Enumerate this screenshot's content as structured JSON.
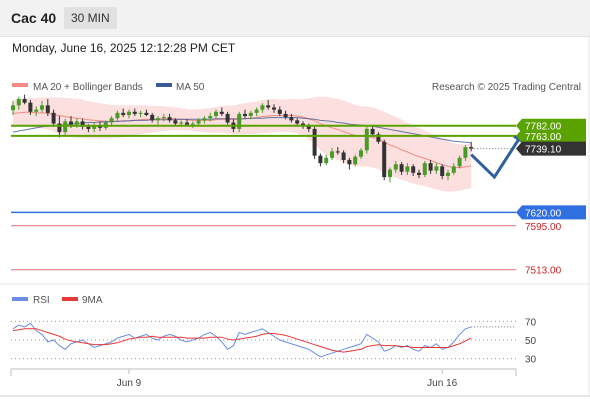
{
  "header": {
    "instrument": "Cac 40",
    "timeframe": "30 MIN"
  },
  "datetime": "Monday, June 16, 2025 12:12:28 PM CET",
  "legend": {
    "ma20": {
      "label": "MA 20 + Bollinger Bands",
      "color": "#f28b82"
    },
    "ma50": {
      "label": "MA 50",
      "color": "#3d5a98"
    },
    "copyright": "Research © 2025 Trading Central"
  },
  "rsi_legend": {
    "rsi": {
      "label": "RSI",
      "color": "#6a8fe0"
    },
    "ma9": {
      "label": "9MA",
      "color": "#e53935"
    }
  },
  "colors": {
    "green_level": "#5aa200",
    "blue_level": "#2f6fe0",
    "red_level": "#e07070",
    "bb_fill": "#fbd9d9",
    "candle_up": "#4a9a2a",
    "candle_down": "#333333",
    "last_price_bg": "#333333",
    "arrow": "#2f5f9e"
  },
  "chart_data": [
    {
      "type": "candlestick",
      "ylim": [
        7490,
        7830
      ],
      "x_ticks": [
        {
          "index": 20,
          "label": "Jun 9"
        },
        {
          "index": 74,
          "label": "Jun 16"
        }
      ],
      "levels": [
        {
          "value": 7782.0,
          "label": "7782.00",
          "style": "green-box"
        },
        {
          "value": 7763.0,
          "label": "7763.00",
          "style": "green-box"
        },
        {
          "value": 7620.0,
          "label": "7620.00",
          "style": "blue-box"
        },
        {
          "value": 7595.0,
          "label": "7595.00",
          "style": "red-text"
        },
        {
          "value": 7513.0,
          "label": "7513.00",
          "style": "red-text"
        }
      ],
      "last_price": {
        "value": 7739.1,
        "label": "7739.10"
      },
      "candles": [
        [
          7811,
          7828,
          7802,
          7820
        ],
        [
          7820,
          7836,
          7812,
          7832
        ],
        [
          7832,
          7840,
          7822,
          7825
        ],
        [
          7825,
          7830,
          7802,
          7808
        ],
        [
          7808,
          7818,
          7800,
          7812
        ],
        [
          7812,
          7828,
          7806,
          7820
        ],
        [
          7820,
          7832,
          7800,
          7806
        ],
        [
          7806,
          7812,
          7780,
          7786
        ],
        [
          7786,
          7800,
          7760,
          7770
        ],
        [
          7770,
          7795,
          7765,
          7790
        ],
        [
          7790,
          7800,
          7778,
          7784
        ],
        [
          7784,
          7795,
          7778,
          7790
        ],
        [
          7790,
          7795,
          7775,
          7780
        ],
        [
          7780,
          7785,
          7770,
          7776
        ],
        [
          7776,
          7788,
          7770,
          7782
        ],
        [
          7782,
          7790,
          7772,
          7778
        ],
        [
          7778,
          7792,
          7774,
          7788
        ],
        [
          7788,
          7800,
          7782,
          7796
        ],
        [
          7796,
          7810,
          7790,
          7806
        ],
        [
          7806,
          7814,
          7798,
          7802
        ],
        [
          7802,
          7812,
          7796,
          7808
        ],
        [
          7808,
          7814,
          7800,
          7804
        ],
        [
          7804,
          7810,
          7798,
          7806
        ],
        [
          7806,
          7812,
          7800,
          7802
        ],
        [
          7802,
          7806,
          7788,
          7792
        ],
        [
          7792,
          7800,
          7784,
          7796
        ],
        [
          7796,
          7804,
          7790,
          7798
        ],
        [
          7798,
          7804,
          7788,
          7792
        ],
        [
          7792,
          7796,
          7782,
          7786
        ],
        [
          7786,
          7792,
          7780,
          7788
        ],
        [
          7788,
          7794,
          7782,
          7784
        ],
        [
          7784,
          7790,
          7778,
          7786
        ],
        [
          7786,
          7796,
          7782,
          7792
        ],
        [
          7792,
          7800,
          7786,
          7796
        ],
        [
          7796,
          7806,
          7790,
          7800
        ],
        [
          7800,
          7812,
          7796,
          7808
        ],
        [
          7808,
          7816,
          7800,
          7804
        ],
        [
          7804,
          7808,
          7784,
          7788
        ],
        [
          7788,
          7794,
          7770,
          7776
        ],
        [
          7776,
          7808,
          7770,
          7804
        ],
        [
          7804,
          7812,
          7796,
          7800
        ],
        [
          7800,
          7810,
          7794,
          7806
        ],
        [
          7806,
          7816,
          7800,
          7812
        ],
        [
          7812,
          7824,
          7806,
          7820
        ],
        [
          7820,
          7830,
          7812,
          7816
        ],
        [
          7816,
          7822,
          7806,
          7812
        ],
        [
          7812,
          7818,
          7800,
          7804
        ],
        [
          7804,
          7810,
          7794,
          7798
        ],
        [
          7798,
          7804,
          7788,
          7792
        ],
        [
          7792,
          7796,
          7782,
          7786
        ],
        [
          7786,
          7790,
          7776,
          7782
        ],
        [
          7782,
          7786,
          7770,
          7776
        ],
        [
          7776,
          7780,
          7720,
          7726
        ],
        [
          7726,
          7730,
          7706,
          7712
        ],
        [
          7712,
          7728,
          7708,
          7722
        ],
        [
          7722,
          7740,
          7718,
          7734
        ],
        [
          7734,
          7742,
          7728,
          7732
        ],
        [
          7732,
          7736,
          7712,
          7718
        ],
        [
          7718,
          7722,
          7700,
          7710
        ],
        [
          7710,
          7728,
          7706,
          7724
        ],
        [
          7724,
          7740,
          7720,
          7736
        ],
        [
          7736,
          7780,
          7730,
          7776
        ],
        [
          7776,
          7784,
          7762,
          7766
        ],
        [
          7766,
          7770,
          7748,
          7752
        ],
        [
          7752,
          7756,
          7680,
          7686
        ],
        [
          7686,
          7704,
          7676,
          7700
        ],
        [
          7700,
          7716,
          7694,
          7710
        ],
        [
          7710,
          7714,
          7690,
          7696
        ],
        [
          7696,
          7712,
          7690,
          7706
        ],
        [
          7706,
          7710,
          7688,
          7694
        ],
        [
          7694,
          7700,
          7684,
          7690
        ],
        [
          7690,
          7716,
          7686,
          7712
        ],
        [
          7712,
          7718,
          7692,
          7698
        ],
        [
          7698,
          7712,
          7692,
          7706
        ],
        [
          7706,
          7710,
          7682,
          7688
        ],
        [
          7688,
          7700,
          7680,
          7694
        ],
        [
          7694,
          7712,
          7690,
          7706
        ],
        [
          7706,
          7726,
          7702,
          7722
        ],
        [
          7722,
          7746,
          7716,
          7742
        ],
        [
          7742,
          7752,
          7734,
          7739
        ]
      ],
      "ma20": [
        7805,
        7806,
        7807,
        7807,
        7806,
        7806,
        7805,
        7803,
        7801,
        7799,
        7797,
        7796,
        7795,
        7793,
        7792,
        7791,
        7790,
        7790,
        7790,
        7790,
        7791,
        7792,
        7793,
        7794,
        7794,
        7795,
        7795,
        7795,
        7795,
        7794,
        7793,
        7792,
        7792,
        7792,
        7792,
        7793,
        7794,
        7794,
        7793,
        7794,
        7795,
        7796,
        7797,
        7799,
        7800,
        7801,
        7801,
        7801,
        7801,
        7800,
        7798,
        7795,
        7791,
        7786,
        7782,
        7778,
        7775,
        7771,
        7767,
        7764,
        7762,
        7762,
        7760,
        7757,
        7751,
        7746,
        7742,
        7737,
        7733,
        7728,
        7724,
        7721,
        7717,
        7713,
        7709,
        7706,
        7704,
        7704,
        7705,
        7707
      ],
      "ma50": [
        7770,
        7772,
        7774,
        7776,
        7778,
        7780,
        7781,
        7782,
        7783,
        7784,
        7785,
        7786,
        7787,
        7788,
        7788,
        7789,
        7789,
        7790,
        7790,
        7791,
        7791,
        7792,
        7792,
        7792,
        7793,
        7793,
        7793,
        7793,
        7793,
        7794,
        7794,
        7794,
        7794,
        7794,
        7794,
        7795,
        7795,
        7795,
        7795,
        7795,
        7795,
        7796,
        7796,
        7796,
        7797,
        7797,
        7797,
        7797,
        7797,
        7797,
        7796,
        7795,
        7794,
        7792,
        7791,
        7790,
        7788,
        7787,
        7785,
        7784,
        7783,
        7782,
        7781,
        7779,
        7777,
        7775,
        7773,
        7771,
        7769,
        7767,
        7765,
        7763,
        7761,
        7759,
        7757,
        7755,
        7753,
        7752,
        7751,
        7750
      ],
      "bb_width": [
        25,
        25,
        26,
        27,
        28,
        29,
        30,
        32,
        34,
        35,
        36,
        36,
        36,
        35,
        34,
        33,
        32,
        31,
        30,
        30,
        29,
        28,
        27,
        26,
        25,
        24,
        23,
        22,
        21,
        21,
        20,
        20,
        21,
        22,
        23,
        24,
        25,
        26,
        27,
        28,
        29,
        30,
        30,
        31,
        31,
        31,
        30,
        30,
        31,
        32,
        34,
        38,
        44,
        50,
        54,
        56,
        57,
        58,
        58,
        57,
        56,
        56,
        56,
        56,
        57,
        57,
        57,
        56,
        55,
        54,
        53,
        52,
        51,
        50,
        49,
        47,
        45,
        43,
        42,
        41
      ],
      "projection": [
        {
          "index": 79,
          "value": 7728
        },
        {
          "index": 83,
          "value": 7686
        },
        {
          "index": 88,
          "value": 7770
        }
      ]
    },
    {
      "type": "line",
      "title": "RSI",
      "ylim": [
        20,
        80
      ],
      "y_ticks": [
        70,
        50,
        30
      ],
      "series": [
        {
          "name": "RSI",
          "values": [
            62,
            66,
            64,
            68,
            60,
            56,
            48,
            50,
            44,
            40,
            46,
            48,
            50,
            46,
            42,
            44,
            46,
            48,
            52,
            54,
            56,
            52,
            54,
            56,
            52,
            50,
            54,
            56,
            54,
            50,
            48,
            50,
            52,
            56,
            58,
            54,
            48,
            40,
            44,
            58,
            56,
            58,
            60,
            62,
            58,
            54,
            50,
            48,
            46,
            44,
            42,
            40,
            36,
            32,
            34,
            36,
            38,
            40,
            42,
            44,
            46,
            56,
            52,
            48,
            38,
            40,
            44,
            42,
            44,
            40,
            38,
            44,
            42,
            46,
            40,
            42,
            48,
            56,
            62,
            64
          ]
        },
        {
          "name": "9MA",
          "values": [
            60,
            61,
            62,
            62,
            62,
            60,
            58,
            56,
            54,
            51,
            49,
            48,
            47,
            46,
            45,
            45,
            45,
            46,
            47,
            49,
            51,
            52,
            53,
            53,
            54,
            53,
            53,
            53,
            53,
            53,
            52,
            52,
            52,
            52,
            53,
            53,
            53,
            51,
            50,
            51,
            52,
            53,
            54,
            56,
            57,
            57,
            56,
            55,
            53,
            51,
            49,
            47,
            45,
            43,
            41,
            39,
            38,
            37,
            38,
            39,
            40,
            43,
            44,
            45,
            44,
            44,
            44,
            43,
            43,
            42,
            42,
            42,
            42,
            42,
            42,
            42,
            44,
            46,
            49,
            52
          ]
        }
      ]
    }
  ]
}
